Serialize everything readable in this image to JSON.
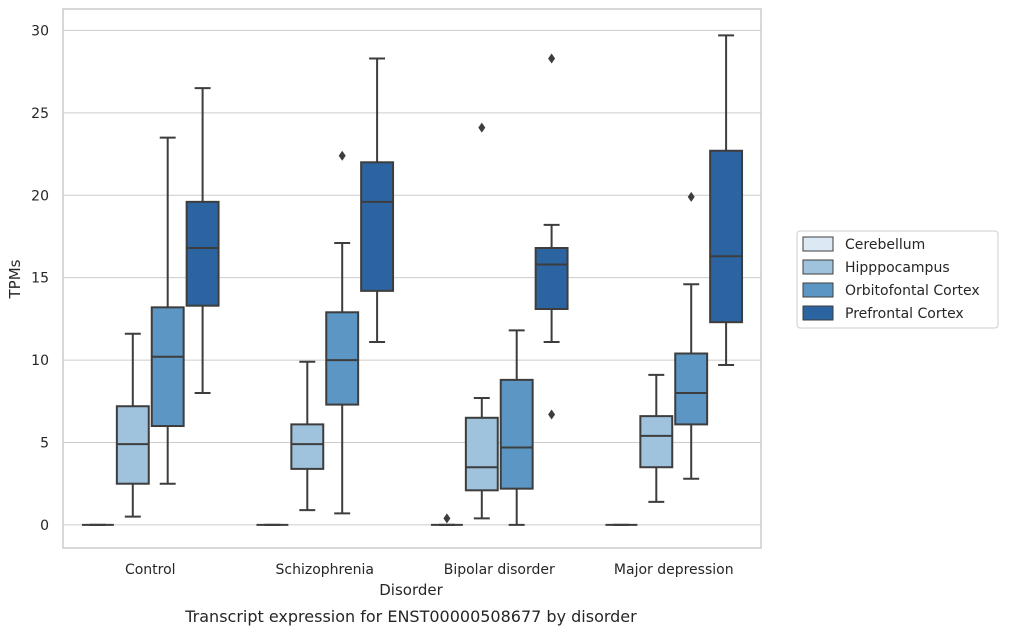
{
  "chart_data": {
    "type": "box",
    "caption": "Transcript expression for ENST00000508677 by disorder",
    "xlabel": "Disorder",
    "ylabel": "TPMs",
    "ylim": [
      -1.4,
      31.3
    ],
    "yticks": [
      0,
      5,
      10,
      15,
      20,
      25,
      30
    ],
    "grid": "horizontal",
    "legend_position": "right",
    "categories": [
      "Control",
      "Schizophrenia",
      "Bipolar disorder",
      "Major depression"
    ],
    "series": [
      {
        "name": "Cerebellum",
        "color": "#dce9f5",
        "boxes": [
          {
            "whisker_low": 0,
            "q1": 0,
            "median": 0,
            "q3": 0,
            "whisker_high": 0,
            "outliers": []
          },
          {
            "whisker_low": 0,
            "q1": 0,
            "median": 0,
            "q3": 0,
            "whisker_high": 0,
            "outliers": []
          },
          {
            "whisker_low": 0,
            "q1": 0,
            "median": 0,
            "q3": 0,
            "whisker_high": 0,
            "outliers": [
              0.4
            ]
          },
          {
            "whisker_low": 0,
            "q1": 0,
            "median": 0,
            "q3": 0,
            "whisker_high": 0,
            "outliers": []
          }
        ]
      },
      {
        "name": "Hipppocampus",
        "color": "#9fc3dd",
        "boxes": [
          {
            "whisker_low": 0.5,
            "q1": 2.5,
            "median": 4.9,
            "q3": 7.2,
            "whisker_high": 11.6,
            "outliers": []
          },
          {
            "whisker_low": 0.9,
            "q1": 3.4,
            "median": 4.9,
            "q3": 6.1,
            "whisker_high": 9.9,
            "outliers": []
          },
          {
            "whisker_low": 0.4,
            "q1": 2.1,
            "median": 3.5,
            "q3": 6.5,
            "whisker_high": 7.7,
            "outliers": [
              24.1
            ]
          },
          {
            "whisker_low": 1.4,
            "q1": 3.5,
            "median": 5.4,
            "q3": 6.6,
            "whisker_high": 9.1,
            "outliers": []
          }
        ]
      },
      {
        "name": "Orbitofontal Cortex",
        "color": "#5b96c4",
        "boxes": [
          {
            "whisker_low": 2.5,
            "q1": 6.0,
            "median": 10.2,
            "q3": 13.2,
            "whisker_high": 23.5,
            "outliers": []
          },
          {
            "whisker_low": 0.7,
            "q1": 7.3,
            "median": 10.0,
            "q3": 12.9,
            "whisker_high": 17.1,
            "outliers": [
              22.4
            ]
          },
          {
            "whisker_low": 0,
            "q1": 2.2,
            "median": 4.7,
            "q3": 8.8,
            "whisker_high": 11.8,
            "outliers": []
          },
          {
            "whisker_low": 2.8,
            "q1": 6.1,
            "median": 8.0,
            "q3": 10.4,
            "whisker_high": 14.6,
            "outliers": [
              19.9
            ]
          }
        ]
      },
      {
        "name": "Prefrontal Cortex",
        "color": "#2c64a2",
        "boxes": [
          {
            "whisker_low": 8.0,
            "q1": 13.3,
            "median": 16.8,
            "q3": 19.6,
            "whisker_high": 26.5,
            "outliers": []
          },
          {
            "whisker_low": 11.1,
            "q1": 14.2,
            "median": 19.6,
            "q3": 22.0,
            "whisker_high": 28.3,
            "outliers": []
          },
          {
            "whisker_low": 11.1,
            "q1": 13.1,
            "median": 15.8,
            "q3": 16.8,
            "whisker_high": 18.2,
            "outliers": [
              6.7,
              28.3
            ]
          },
          {
            "whisker_low": 9.7,
            "q1": 12.3,
            "median": 16.3,
            "q3": 22.7,
            "whisker_high": 29.7,
            "outliers": []
          }
        ]
      }
    ]
  }
}
